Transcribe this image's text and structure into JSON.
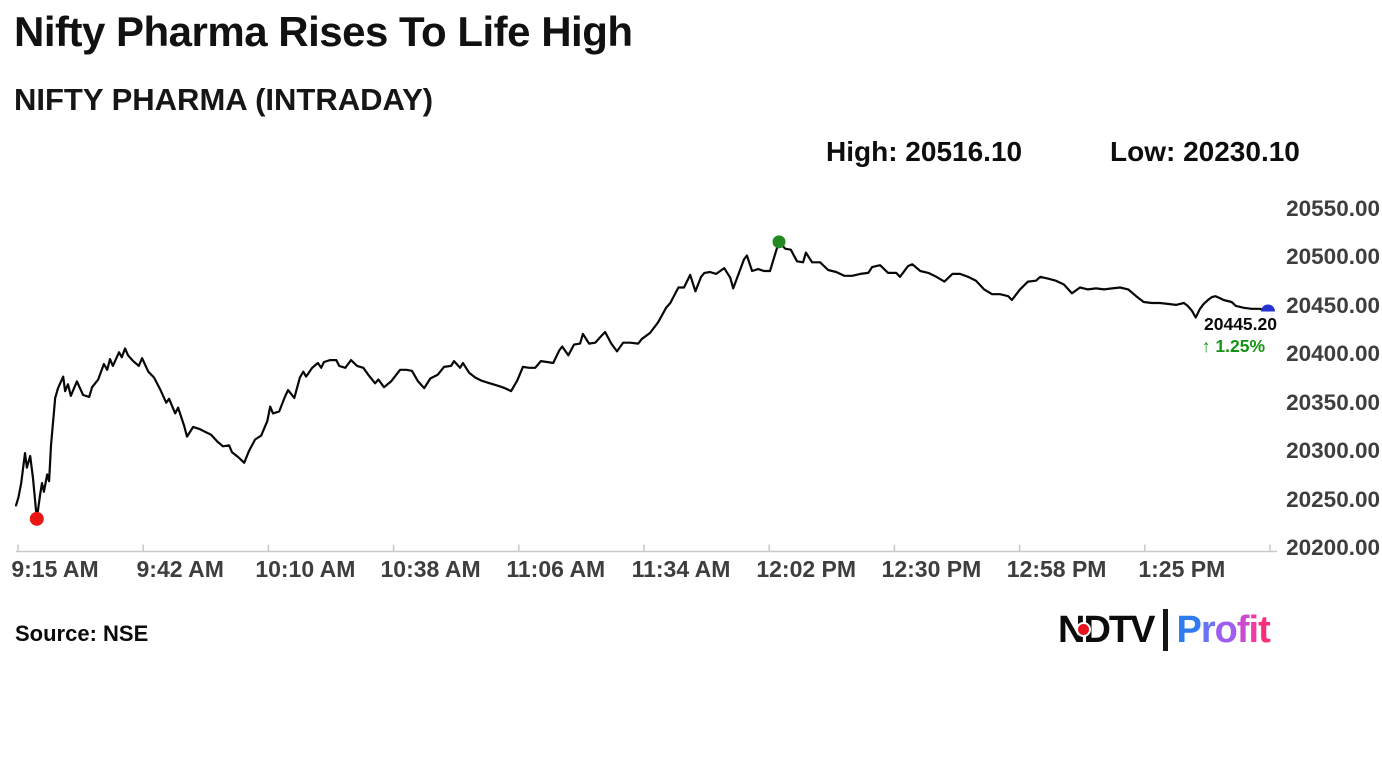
{
  "header": {
    "title": "Nifty Pharma Rises To Life High",
    "subtitle": "NIFTY PHARMA (INTRADAY)",
    "high_label": "High: 20516.10",
    "low_label": "Low: 20230.10"
  },
  "annotation": {
    "price": "20445.20",
    "change": "↑ 1.25%"
  },
  "footer": {
    "source": "Source: NSE",
    "logo": {
      "ndtv_n": "N",
      "ndtv_d": "D",
      "ndtv_tv": "TV",
      "profit": "Profit"
    }
  },
  "colors": {
    "line": "#080808",
    "axis": "#c9c9c9",
    "tick_label": "#3e3e3e",
    "low_dot": "#ea1515",
    "high_dot": "#238a23",
    "last_dot": "#2433cc",
    "change_text": "#149414",
    "logo_dot": "#e8131c",
    "profit_letters": [
      "#2f7bf0",
      "#6a74f2",
      "#9e5ef0",
      "#cc4ad0",
      "#ee3ba6",
      "#fa2e7c"
    ]
  },
  "chart_data": {
    "type": "line",
    "title": "Nifty Pharma Rises To Life High",
    "subtitle": "NIFTY PHARMA (INTRADAY)",
    "high": 20516.1,
    "low": 20230.1,
    "last": 20445.2,
    "change_pct": 1.25,
    "session_start": "9:15 AM",
    "session_minutes": 265,
    "ylim": [
      20200,
      20550
    ],
    "grid": false,
    "x_labels": [
      "9:15 AM",
      "9:42 AM",
      "10:10 AM",
      "10:38 AM",
      "11:06 AM",
      "11:34 AM",
      "12:02 PM",
      "12:30 PM",
      "12:58 PM",
      "1:25 PM"
    ],
    "y_ticks": [
      {
        "value": 20550,
        "label": "20550.00"
      },
      {
        "value": 20500,
        "label": "20500.00"
      },
      {
        "value": 20450,
        "label": "20450.00"
      },
      {
        "value": 20400,
        "label": "20400.00"
      },
      {
        "value": 20350,
        "label": "20350.00"
      },
      {
        "value": 20300,
        "label": "20300.00"
      },
      {
        "value": 20250,
        "label": "20250.00"
      },
      {
        "value": 20200,
        "label": "20200.00"
      }
    ],
    "markers": [
      {
        "type": "low",
        "t": 4.4,
        "v": 20230.1
      },
      {
        "type": "high",
        "t": 161.5,
        "v": 20516.1
      },
      {
        "type": "last",
        "t": 265,
        "v": 20445.2
      }
    ],
    "series": [
      {
        "name": "NIFTY PHARMA",
        "points": [
          [
            0,
            20244
          ],
          [
            0.5,
            20252
          ],
          [
            1.1,
            20267
          ],
          [
            1.9,
            20298
          ],
          [
            2.3,
            20283
          ],
          [
            3,
            20295
          ],
          [
            3.6,
            20272
          ],
          [
            4.4,
            20230.1
          ],
          [
            5.1,
            20255
          ],
          [
            5.5,
            20267
          ],
          [
            5.9,
            20258
          ],
          [
            6.6,
            20276
          ],
          [
            7,
            20269
          ],
          [
            7.4,
            20306
          ],
          [
            8.3,
            20355
          ],
          [
            8.9,
            20365
          ],
          [
            10,
            20377
          ],
          [
            10.4,
            20362
          ],
          [
            11,
            20369
          ],
          [
            11.6,
            20357
          ],
          [
            12.9,
            20372
          ],
          [
            14.2,
            20358
          ],
          [
            15.5,
            20356
          ],
          [
            16.1,
            20366
          ],
          [
            17.4,
            20374
          ],
          [
            18.6,
            20390
          ],
          [
            19.3,
            20384
          ],
          [
            19.9,
            20395
          ],
          [
            20.5,
            20388
          ],
          [
            21.8,
            20402
          ],
          [
            22.4,
            20397
          ],
          [
            23.1,
            20406
          ],
          [
            23.7,
            20399
          ],
          [
            24.8,
            20393
          ],
          [
            26,
            20388
          ],
          [
            26.7,
            20396
          ],
          [
            28,
            20382
          ],
          [
            29.2,
            20376
          ],
          [
            30.5,
            20364
          ],
          [
            31.8,
            20350
          ],
          [
            32.4,
            20354
          ],
          [
            33.7,
            20339
          ],
          [
            34.3,
            20345
          ],
          [
            35.6,
            20326
          ],
          [
            36.2,
            20315
          ],
          [
            37.5,
            20325
          ],
          [
            38.8,
            20323
          ],
          [
            40,
            20320
          ],
          [
            41.3,
            20317
          ],
          [
            42.6,
            20310
          ],
          [
            43.8,
            20305
          ],
          [
            45.1,
            20306
          ],
          [
            45.7,
            20299
          ],
          [
            47,
            20294
          ],
          [
            48.3,
            20288
          ],
          [
            49.3,
            20300
          ],
          [
            50.6,
            20312
          ],
          [
            51.9,
            20316
          ],
          [
            53.2,
            20331
          ],
          [
            53.8,
            20346
          ],
          [
            54.4,
            20339
          ],
          [
            55.7,
            20341
          ],
          [
            57,
            20357
          ],
          [
            57.6,
            20363
          ],
          [
            58.9,
            20355
          ],
          [
            60.1,
            20376
          ],
          [
            60.8,
            20382
          ],
          [
            61.4,
            20377
          ],
          [
            62.7,
            20386
          ],
          [
            63.9,
            20391
          ],
          [
            64.6,
            20386
          ],
          [
            65.2,
            20392
          ],
          [
            66.5,
            20394
          ],
          [
            67.8,
            20394
          ],
          [
            68.4,
            20388
          ],
          [
            69.7,
            20386
          ],
          [
            70.9,
            20394
          ],
          [
            72.2,
            20388
          ],
          [
            73.5,
            20386
          ],
          [
            74.7,
            20378
          ],
          [
            76,
            20370
          ],
          [
            76.7,
            20374
          ],
          [
            77.9,
            20366
          ],
          [
            79.4,
            20372
          ],
          [
            81.3,
            20384
          ],
          [
            82.6,
            20384
          ],
          [
            83.8,
            20383
          ],
          [
            85.1,
            20372
          ],
          [
            86.4,
            20365
          ],
          [
            87.7,
            20375
          ],
          [
            89.3,
            20379
          ],
          [
            90.6,
            20387
          ],
          [
            92.1,
            20388
          ],
          [
            92.7,
            20393
          ],
          [
            94,
            20386
          ],
          [
            94.6,
            20391
          ],
          [
            95.9,
            20381
          ],
          [
            97.2,
            20376
          ],
          [
            98.4,
            20373
          ],
          [
            99.7,
            20371
          ],
          [
            101,
            20369
          ],
          [
            102.3,
            20367
          ],
          [
            103.5,
            20365
          ],
          [
            104.8,
            20362
          ],
          [
            106.1,
            20373
          ],
          [
            107.3,
            20387
          ],
          [
            108.6,
            20386
          ],
          [
            109.9,
            20386
          ],
          [
            111.1,
            20393
          ],
          [
            112.4,
            20392
          ],
          [
            113.7,
            20391
          ],
          [
            115,
            20404
          ],
          [
            115.6,
            20408
          ],
          [
            116.9,
            20399
          ],
          [
            118.1,
            20410
          ],
          [
            119.4,
            20411
          ],
          [
            120,
            20421
          ],
          [
            121.3,
            20411
          ],
          [
            122.6,
            20412
          ],
          [
            123.9,
            20419
          ],
          [
            124.7,
            20423
          ],
          [
            126,
            20411
          ],
          [
            127.2,
            20403
          ],
          [
            128.5,
            20412
          ],
          [
            130,
            20412
          ],
          [
            131.7,
            20411
          ],
          [
            132.5,
            20416
          ],
          [
            134.2,
            20422
          ],
          [
            135.9,
            20433
          ],
          [
            137.6,
            20448
          ],
          [
            138.5,
            20453
          ],
          [
            140.2,
            20469
          ],
          [
            141.4,
            20469
          ],
          [
            142.7,
            20482
          ],
          [
            143.8,
            20465
          ],
          [
            145,
            20480
          ],
          [
            145.7,
            20484
          ],
          [
            146.9,
            20485
          ],
          [
            148.2,
            20483
          ],
          [
            149.9,
            20489
          ],
          [
            151.2,
            20479
          ],
          [
            151.8,
            20468
          ],
          [
            153.1,
            20485
          ],
          [
            154.1,
            20498
          ],
          [
            154.7,
            20502
          ],
          [
            155.8,
            20486
          ],
          [
            157.1,
            20488
          ],
          [
            158.3,
            20486
          ],
          [
            159.6,
            20486
          ],
          [
            160.9,
            20507
          ],
          [
            161.5,
            20516.1
          ],
          [
            162.8,
            20509
          ],
          [
            164,
            20508
          ],
          [
            165.3,
            20496
          ],
          [
            166.6,
            20495
          ],
          [
            167.2,
            20505
          ],
          [
            168.5,
            20495
          ],
          [
            170.2,
            20495
          ],
          [
            171.9,
            20487
          ],
          [
            173.6,
            20485
          ],
          [
            175.3,
            20481
          ],
          [
            177,
            20481
          ],
          [
            178.7,
            20483
          ],
          [
            180.4,
            20484
          ],
          [
            181.2,
            20490
          ],
          [
            182.9,
            20492
          ],
          [
            184.6,
            20484
          ],
          [
            186.3,
            20484
          ],
          [
            187.1,
            20480
          ],
          [
            188.8,
            20491
          ],
          [
            189.7,
            20493
          ],
          [
            191.4,
            20486
          ],
          [
            193.1,
            20484
          ],
          [
            194.8,
            20480
          ],
          [
            196.5,
            20475
          ],
          [
            198.2,
            20483
          ],
          [
            199.8,
            20483
          ],
          [
            201.5,
            20480
          ],
          [
            203.2,
            20476
          ],
          [
            204.9,
            20467
          ],
          [
            206.6,
            20462
          ],
          [
            208.3,
            20462
          ],
          [
            210,
            20460
          ],
          [
            210.8,
            20456
          ],
          [
            212.5,
            20467
          ],
          [
            214.2,
            20475
          ],
          [
            215.9,
            20476
          ],
          [
            216.8,
            20480
          ],
          [
            218.5,
            20478
          ],
          [
            220.1,
            20476
          ],
          [
            221.8,
            20472
          ],
          [
            223.5,
            20463
          ],
          [
            225.2,
            20469
          ],
          [
            226.9,
            20467
          ],
          [
            228.6,
            20468
          ],
          [
            230.3,
            20467
          ],
          [
            232,
            20468
          ],
          [
            233.7,
            20469
          ],
          [
            235.4,
            20467
          ],
          [
            237.1,
            20460
          ],
          [
            238.7,
            20454
          ],
          [
            240.4,
            20453
          ],
          [
            242.1,
            20453
          ],
          [
            243.8,
            20452
          ],
          [
            245.5,
            20451
          ],
          [
            247.2,
            20453
          ],
          [
            248,
            20450
          ],
          [
            248.9,
            20445
          ],
          [
            249.7,
            20438
          ],
          [
            250.6,
            20447
          ],
          [
            251.4,
            20452
          ],
          [
            252.3,
            20456
          ],
          [
            253.1,
            20459
          ],
          [
            253.9,
            20460
          ],
          [
            254.8,
            20458
          ],
          [
            255.6,
            20456
          ],
          [
            257.3,
            20454
          ],
          [
            258.2,
            20450
          ],
          [
            259.9,
            20448
          ],
          [
            261.5,
            20447
          ],
          [
            263.2,
            20447
          ],
          [
            264.1,
            20446
          ],
          [
            265,
            20445.2
          ]
        ]
      }
    ],
    "source": "NSE"
  }
}
